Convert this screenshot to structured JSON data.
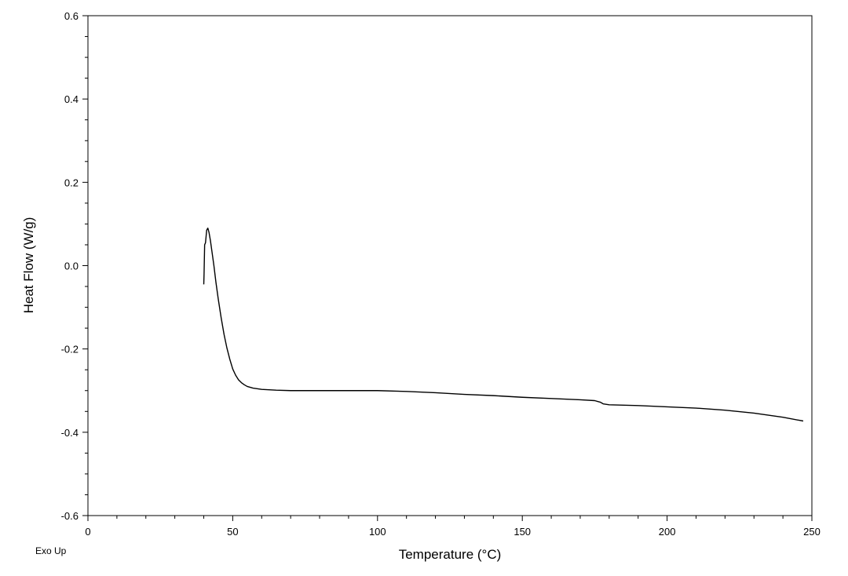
{
  "chart_data": {
    "type": "line",
    "title": "",
    "xlabel": "Temperature (°C)",
    "ylabel": "Heat Flow (W/g)",
    "corner_note": "Exo Up",
    "xlim": [
      0,
      250
    ],
    "ylim": [
      -0.6,
      0.6
    ],
    "x_major_ticks": [
      0,
      50,
      100,
      150,
      200,
      250
    ],
    "x_tick_labels": [
      "0",
      "50",
      "100",
      "150",
      "200",
      "250"
    ],
    "x_minor_step": 10,
    "y_major_ticks": [
      -0.6,
      -0.4,
      -0.2,
      0.0,
      0.2,
      0.4,
      0.6
    ],
    "y_tick_labels": [
      "-0.6",
      "-0.4",
      "-0.2",
      "0.0",
      "0.2",
      "0.4",
      "0.6"
    ],
    "y_minor_step": 0.05,
    "grid": false,
    "legend": "none",
    "line_color": "#000000",
    "series": [
      {
        "x": [
          40.0,
          40.1,
          40.3,
          40.6,
          41.0,
          41.4,
          41.8,
          42.3,
          42.8,
          43.5,
          44.2,
          45.0,
          46.0,
          47.0,
          48.0,
          49.0,
          50.0,
          51.0,
          52.0,
          53.0,
          54.0,
          55.0,
          57.0,
          60.0,
          65.0,
          70.0,
          80.0,
          90.0,
          100.0,
          110.0,
          120.0,
          130.0,
          140.0,
          150.0,
          160.0,
          170.0,
          175.0,
          177.0,
          178.0,
          180.0,
          190.0,
          200.0,
          210.0,
          220.0,
          230.0,
          240.0,
          247.0
        ],
        "y": [
          -0.045,
          -0.02,
          0.05,
          0.055,
          0.085,
          0.09,
          0.08,
          0.06,
          0.035,
          0.0,
          -0.04,
          -0.08,
          -0.125,
          -0.165,
          -0.198,
          -0.225,
          -0.248,
          -0.263,
          -0.274,
          -0.281,
          -0.286,
          -0.29,
          -0.294,
          -0.297,
          -0.299,
          -0.3,
          -0.3,
          -0.3,
          -0.3,
          -0.302,
          -0.305,
          -0.309,
          -0.312,
          -0.316,
          -0.319,
          -0.322,
          -0.324,
          -0.328,
          -0.332,
          -0.334,
          -0.336,
          -0.339,
          -0.342,
          -0.347,
          -0.354,
          -0.364,
          -0.373
        ]
      }
    ]
  }
}
